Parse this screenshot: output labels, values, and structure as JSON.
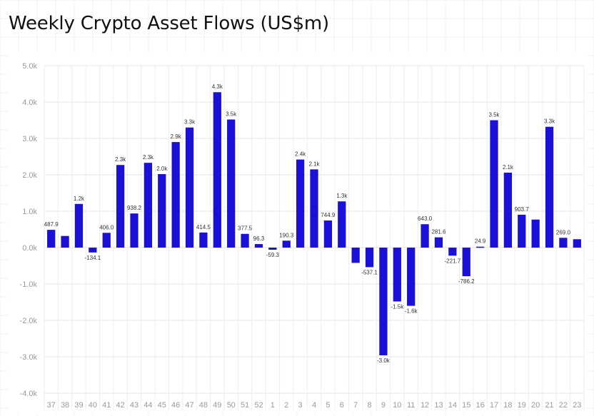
{
  "title": "Weekly Crypto Asset Flows (US$m)",
  "chart_data": {
    "type": "bar",
    "title": "Weekly Crypto Asset Flows (US$m)",
    "xlabel": "",
    "ylabel": "",
    "ylim": [
      -4000,
      5000
    ],
    "yticks": [
      -4000,
      -3000,
      -2000,
      -1000,
      0,
      1000,
      2000,
      3000,
      4000,
      5000
    ],
    "ytick_labels": [
      "-4.0k",
      "-3.0k",
      "-2.0k",
      "-1.0k",
      "0.0k",
      "1.0k",
      "2.0k",
      "3.0k",
      "4.0k",
      "5.0k"
    ],
    "grid": true,
    "bar_color": "#1a10d8",
    "categories": [
      "37",
      "38",
      "39",
      "40",
      "41",
      "42",
      "43",
      "44",
      "45",
      "46",
      "47",
      "48",
      "49",
      "50",
      "51",
      "52",
      "1",
      "2",
      "3",
      "4",
      "5",
      "6",
      "7",
      "8",
      "9",
      "10",
      "11",
      "12",
      "13",
      "14",
      "15",
      "16",
      "17",
      "18",
      "19",
      "20",
      "21",
      "22",
      "23"
    ],
    "values": [
      487.9,
      320,
      1200,
      -134.1,
      406.0,
      2270,
      938.2,
      2330,
      2020,
      2900,
      3300,
      414.5,
      4270,
      3520,
      377.5,
      96.3,
      -59.3,
      190.3,
      2420,
      2150,
      744.9,
      1270,
      -420,
      -537.1,
      -2960,
      -1480,
      -1600,
      643.0,
      281.6,
      -221.7,
      -786.2,
      24.9,
      3500,
      2060,
      903.7,
      770,
      3320,
      269.0,
      230
    ],
    "data_labels": [
      "487.9",
      "",
      "1.2k",
      "-134.1",
      "406.0",
      "2.3k",
      "938.2",
      "2.3k",
      "2.0k",
      "2.9k",
      "3.3k",
      "414.5",
      "4.3k",
      "3.5k",
      "377.5",
      "96.3",
      "-59.3",
      "190.3",
      "2.4k",
      "2.1k",
      "744.9",
      "1.3k",
      "",
      "-537.1",
      "-3.0k",
      "-1.5k",
      "-1.6k",
      "643.0",
      "281.6",
      "-221.7",
      "-786.2",
      "24.9",
      "3.5k",
      "2.1k",
      "903.7",
      "",
      "3.3k",
      "269.0",
      ""
    ]
  }
}
